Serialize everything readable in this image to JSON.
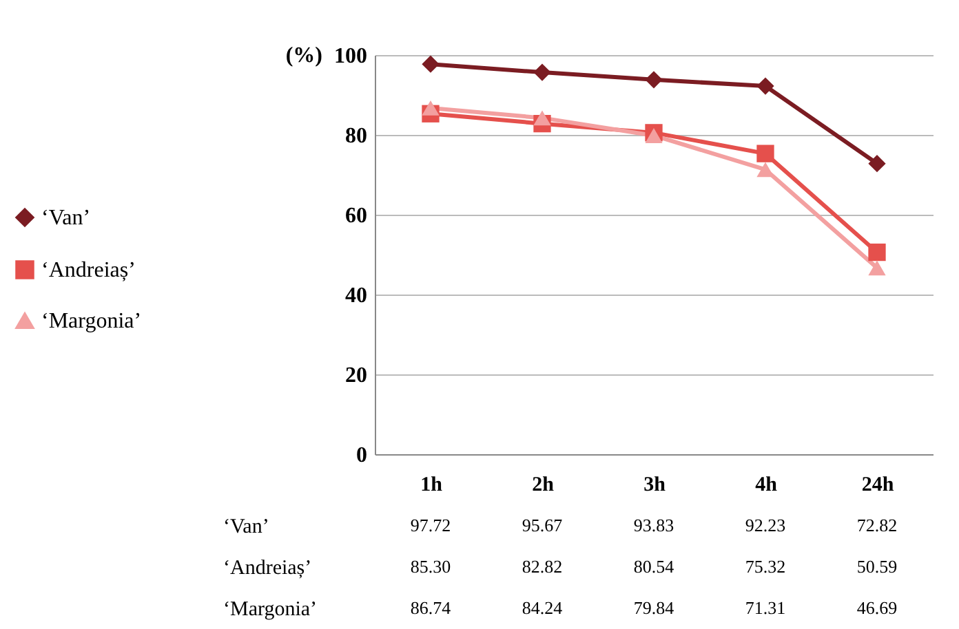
{
  "chart_data": {
    "type": "line",
    "ylabel": "(%)",
    "categories": [
      "1h",
      "2h",
      "3h",
      "4h",
      "24h"
    ],
    "series": [
      {
        "name": "‘Van’",
        "color": "#7b1c22",
        "marker": "diamond",
        "values": [
          97.72,
          95.67,
          93.83,
          92.23,
          72.82
        ],
        "value_labels": [
          "97.72",
          "95.67",
          "93.83",
          "92.23",
          "72.82"
        ]
      },
      {
        "name": "‘Andreiaș’",
        "color": "#e5504c",
        "marker": "square",
        "values": [
          85.3,
          82.82,
          80.54,
          75.32,
          50.59
        ],
        "value_labels": [
          "85.30",
          "82.82",
          "80.54",
          "75.32",
          "50.59"
        ]
      },
      {
        "name": "‘Margonia’",
        "color": "#f3a0a0",
        "marker": "triangle",
        "values": [
          86.74,
          84.24,
          79.84,
          71.31,
          46.69
        ],
        "value_labels": [
          "86.74",
          "84.24",
          "79.84",
          "71.31",
          "46.69"
        ]
      }
    ],
    "ylim": [
      0,
      100
    ],
    "yticks": [
      0,
      20,
      40,
      60,
      80,
      100
    ],
    "grid": "y",
    "legend": "left"
  }
}
